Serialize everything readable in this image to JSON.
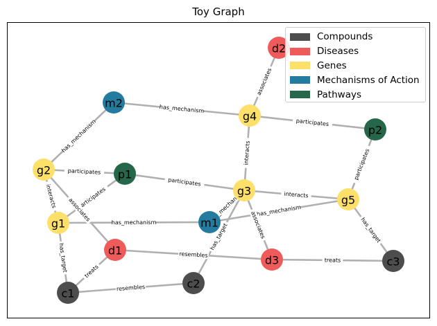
{
  "title": "Toy Graph",
  "colors": {
    "compound": "#4d4d4d",
    "disease": "#ef5b5b",
    "gene": "#fde06a",
    "mechanism": "#247ba0",
    "pathway": "#276749",
    "edge": "#b0b0b0"
  },
  "legend": [
    {
      "label": "Compounds",
      "type": "compound"
    },
    {
      "label": "Diseases",
      "type": "disease"
    },
    {
      "label": "Genes",
      "type": "gene"
    },
    {
      "label": "Mechanisms of Action",
      "type": "mechanism"
    },
    {
      "label": "Pathways",
      "type": "pathway"
    }
  ],
  "nodes": [
    {
      "id": "d2",
      "type": "disease"
    },
    {
      "id": "m2",
      "type": "mechanism"
    },
    {
      "id": "g4",
      "type": "gene"
    },
    {
      "id": "p2",
      "type": "pathway"
    },
    {
      "id": "g2",
      "type": "gene"
    },
    {
      "id": "p1",
      "type": "pathway"
    },
    {
      "id": "g3",
      "type": "gene"
    },
    {
      "id": "g5",
      "type": "gene"
    },
    {
      "id": "g1",
      "type": "gene"
    },
    {
      "id": "m1",
      "type": "mechanism"
    },
    {
      "id": "d1",
      "type": "disease"
    },
    {
      "id": "d3",
      "type": "disease"
    },
    {
      "id": "c3",
      "type": "compound"
    },
    {
      "id": "c2",
      "type": "compound"
    },
    {
      "id": "c1",
      "type": "compound"
    }
  ],
  "edges": [
    {
      "source": "g4",
      "target": "d2",
      "label": "associates"
    },
    {
      "source": "m2",
      "target": "g4",
      "label": "has_mechanism"
    },
    {
      "source": "g4",
      "target": "p2",
      "label": "participates"
    },
    {
      "source": "g2",
      "target": "m2",
      "label": "has_mechanism"
    },
    {
      "source": "g3",
      "target": "g4",
      "label": "interacts"
    },
    {
      "source": "g5",
      "target": "p2",
      "label": "participates"
    },
    {
      "source": "g2",
      "target": "p1",
      "label": "participates"
    },
    {
      "source": "p1",
      "target": "g3",
      "label": "participates"
    },
    {
      "source": "g3",
      "target": "g5",
      "label": "interacts"
    },
    {
      "source": "g1",
      "target": "p1",
      "label": "participates"
    },
    {
      "source": "g2",
      "target": "g1",
      "label": "interacts"
    },
    {
      "source": "g2",
      "target": "d1",
      "label": "associates"
    },
    {
      "source": "g1",
      "target": "m1",
      "label": "has_mechanism"
    },
    {
      "source": "m1",
      "target": "g5",
      "label": "has_mechanism"
    },
    {
      "source": "g3",
      "target": "m1",
      "label": "has_mechanism"
    },
    {
      "source": "g3",
      "target": "d3",
      "label": "associates"
    },
    {
      "source": "g5",
      "target": "c3",
      "label": "has_target"
    },
    {
      "source": "c2",
      "target": "g3",
      "label": "has_target"
    },
    {
      "source": "d1",
      "target": "d3",
      "label": "resembles"
    },
    {
      "source": "d3",
      "target": "c3",
      "label": "treats"
    },
    {
      "source": "c1",
      "target": "d1",
      "label": "treats"
    },
    {
      "source": "g1",
      "target": "c1",
      "label": "has_target"
    },
    {
      "source": "c1",
      "target": "c2",
      "label": "resembles"
    }
  ]
}
